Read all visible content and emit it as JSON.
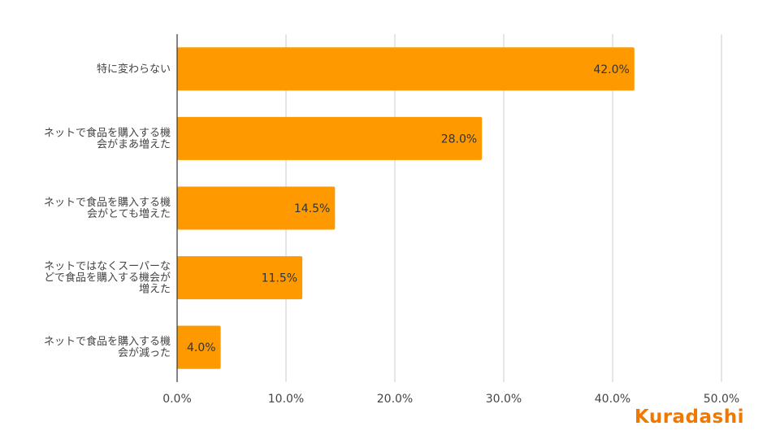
{
  "chart_data": {
    "type": "bar",
    "orientation": "horizontal",
    "categories": [
      "特に変わらない",
      "ネットで食品を購入する機会がまあ増えた",
      "ネットで食品を購入する機会がとても増えた",
      "ネットではなくスーパーなどで食品を購入する機会が増えた",
      "ネットで食品を購入する機会が減った"
    ],
    "category_lines": [
      [
        "特に変わらない"
      ],
      [
        "ネットで食品を購入する機",
        "会がまあ増えた"
      ],
      [
        "ネットで食品を購入する機",
        "会がとても増えた"
      ],
      [
        "ネットではなくスーパーな",
        "どで食品を購入する機会が",
        "増えた"
      ],
      [
        "ネットで食品を購入する機",
        "会が減った"
      ]
    ],
    "values": [
      42.0,
      28.0,
      14.5,
      11.5,
      4.0
    ],
    "data_labels": [
      "42.0%",
      "28.0%",
      "14.5%",
      "11.5%",
      "4.0%"
    ],
    "x_ticks": [
      "0.0%",
      "10.0%",
      "20.0%",
      "30.0%",
      "40.0%",
      "50.0%"
    ],
    "xlim": [
      0,
      50
    ],
    "grid": true,
    "bar_color": "#ff9900"
  },
  "branding": {
    "logo_text": "Kuradashi",
    "logo_color": "#f07800"
  }
}
